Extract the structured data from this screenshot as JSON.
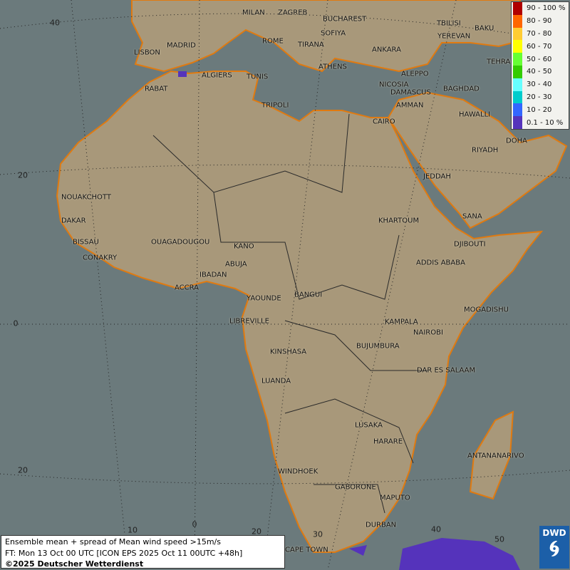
{
  "info": {
    "line1": "Ensemble mean + spread of Mean wind speed >15m/s",
    "line2": "FT: Mon 13 Oct 00 UTC [ICON EPS 2025 Oct 11 00UTC +48h]",
    "line3": "©2025 Deutscher Wetterdienst"
  },
  "logo": {
    "text": "DWD"
  },
  "legend": [
    {
      "label": "90 - 100 %",
      "color": "#b00000"
    },
    {
      "label": "80 - 90",
      "color": "#ff6600"
    },
    {
      "label": "70 - 80",
      "color": "#ffcc33"
    },
    {
      "label": "60 - 70",
      "color": "#ffff00"
    },
    {
      "label": "50 - 60",
      "color": "#66ff33"
    },
    {
      "label": "40 - 50",
      "color": "#33cc00"
    },
    {
      "label": "30 - 40",
      "color": "#66ffff"
    },
    {
      "label": "20 - 30",
      "color": "#00cccc"
    },
    {
      "label": "10 - 20",
      "color": "#3366ff"
    },
    {
      "label": "0.1 - 10 %",
      "color": "#5533bb"
    }
  ],
  "grid_labels": {
    "lat": [
      "40",
      "20",
      "0",
      "20"
    ],
    "lon": [
      "10",
      "0",
      "20",
      "30",
      "40",
      "50"
    ]
  },
  "cities": [
    "MILAN",
    "ZAGREB",
    "BUCHAREST",
    "SOFIYA",
    "ROME",
    "TIRANA",
    "ANKARA",
    "ATHENS",
    "MADRID",
    "LISBON",
    "ALGIERS",
    "TUNIS",
    "ALEPPO",
    "NICOSIA",
    "DAMASCUS",
    "BAGHDAD",
    "TRIPOLI",
    "AMMAN",
    "CAIRO",
    "RABAT",
    "TBILISI",
    "YEREVAN",
    "BAKU",
    "TEHRAN",
    "HAWALLI",
    "DOHA",
    "RIYADH",
    "JEDDAH",
    "SANA",
    "DJIBOUTI",
    "KHARTOUM",
    "ADDIS ABABA",
    "NOUAKCHOTT",
    "DAKAR",
    "BISSAU",
    "CONAKRY",
    "OUAGADOUGOU",
    "KANO",
    "ABUJA",
    "IBADAN",
    "ACCRA",
    "YAOUNDE",
    "BANGUI",
    "LIBREVILLE",
    "MOGADISHU",
    "KAMPALA",
    "NAIROBI",
    "KINSHASA",
    "BUJUMBURA",
    "DAR ES SALAAM",
    "LUANDA",
    "LUSAKA",
    "HARARE",
    "ANTANANARIVO",
    "WINDHOEK",
    "GABORONE",
    "MAPUTO",
    "DURBAN",
    "CAPE TOWN"
  ],
  "colors": {
    "ocean": "#6b7a7c",
    "land": "#a8987a",
    "coast": "#e07a10",
    "border": "#2a2a2a"
  }
}
